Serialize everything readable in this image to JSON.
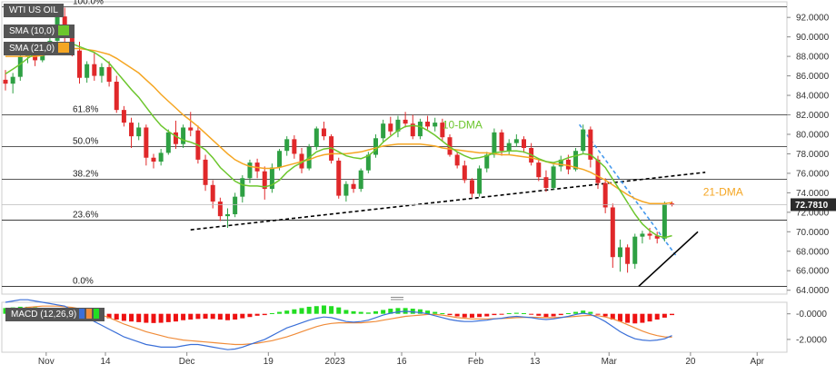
{
  "legend": {
    "title": "WTI US OIL",
    "sma10": "SMA (10,0)",
    "sma21": "SMA (21,0)",
    "macd": "MACD (12,26,9)"
  },
  "colors": {
    "up": "#2ea043",
    "down": "#e0282a",
    "sma10": "#6cc62d",
    "sma21": "#f5a623",
    "macd_line": "#3a6fd8",
    "signal_line": "#f08c3a",
    "hist_pos": "#22dd22",
    "hist_neg": "#ee1111",
    "price_tag": "#2b2b2b"
  },
  "chart_data": [
    {
      "type": "candlestick",
      "ylim": [
        63.6,
        93.6
      ],
      "y_ticks": [
        "92.0000",
        "90.0000",
        "88.0000",
        "86.0000",
        "84.0000",
        "82.0000",
        "80.0000",
        "78.0000",
        "76.0000",
        "74.0000",
        "72.0000",
        "70.0000",
        "68.0000",
        "66.0000",
        "64.0000"
      ],
      "x_ticks": [
        "Nov",
        "14",
        "Dec",
        "19",
        "2023",
        "16",
        "Feb",
        "13",
        "Mar",
        "20",
        "Apr"
      ],
      "current_price_label": "72.7810",
      "fib_levels": [
        {
          "label": "100.0%",
          "value": 93.1
        },
        {
          "label": "61.8%",
          "value": 82.0
        },
        {
          "label": "50.0%",
          "value": 78.75
        },
        {
          "label": "38.2%",
          "value": 75.4
        },
        {
          "label": "23.6%",
          "value": 71.2
        },
        {
          "label": "0.0%",
          "value": 64.4
        }
      ],
      "annotations": [
        {
          "text": "10-DMA",
          "color": "#6cc62d"
        },
        {
          "text": "21-DMA",
          "color": "#f5a623"
        }
      ],
      "candles": [
        [
          85.6,
          86.6,
          84.5,
          85.2
        ],
        [
          85.2,
          86.3,
          84.2,
          85.9
        ],
        [
          85.9,
          88.5,
          85.5,
          88.0
        ],
        [
          88.0,
          89.0,
          87.3,
          88.4
        ],
        [
          88.4,
          88.9,
          87.0,
          87.6
        ],
        [
          87.6,
          89.5,
          87.4,
          89.2
        ],
        [
          89.2,
          90.2,
          88.8,
          89.6
        ],
        [
          89.6,
          92.5,
          89.4,
          92.1
        ],
        [
          92.1,
          93.0,
          89.5,
          89.9
        ],
        [
          89.9,
          91.0,
          88.0,
          88.6
        ],
        [
          88.6,
          89.5,
          85.2,
          85.8
        ],
        [
          85.8,
          87.5,
          85.3,
          87.2
        ],
        [
          87.2,
          88.4,
          85.5,
          86.0
        ],
        [
          86.0,
          87.3,
          85.3,
          86.9
        ],
        [
          86.9,
          87.5,
          84.9,
          85.4
        ],
        [
          85.4,
          86.0,
          82.2,
          82.5
        ],
        [
          82.5,
          82.9,
          80.8,
          81.2
        ],
        [
          81.2,
          81.7,
          78.6,
          79.8
        ],
        [
          79.8,
          81.2,
          79.4,
          80.7
        ],
        [
          80.7,
          81.0,
          76.8,
          77.6
        ],
        [
          77.6,
          78.0,
          76.5,
          77.2
        ],
        [
          77.2,
          78.5,
          76.8,
          78.1
        ],
        [
          78.1,
          80.5,
          77.9,
          80.2
        ],
        [
          80.2,
          81.4,
          78.5,
          79.0
        ],
        [
          79.0,
          81.0,
          78.6,
          80.7
        ],
        [
          80.7,
          82.3,
          79.8,
          80.4
        ],
        [
          80.4,
          80.9,
          77.0,
          77.4
        ],
        [
          77.4,
          77.9,
          74.2,
          74.8
        ],
        [
          74.8,
          75.3,
          72.4,
          73.1
        ],
        [
          73.1,
          73.5,
          71.1,
          71.6
        ],
        [
          71.6,
          72.4,
          70.4,
          71.8
        ],
        [
          71.8,
          74.0,
          71.5,
          73.6
        ],
        [
          73.6,
          75.8,
          73.0,
          75.5
        ],
        [
          75.5,
          77.4,
          75.0,
          77.1
        ],
        [
          77.1,
          77.5,
          75.5,
          76.2
        ],
        [
          76.2,
          76.7,
          73.3,
          74.4
        ],
        [
          74.4,
          77.0,
          74.0,
          76.6
        ],
        [
          76.6,
          78.5,
          76.3,
          78.3
        ],
        [
          78.3,
          79.8,
          77.8,
          79.5
        ],
        [
          79.5,
          79.9,
          77.5,
          78.0
        ],
        [
          78.0,
          78.6,
          76.0,
          76.5
        ],
        [
          76.5,
          79.0,
          76.3,
          78.7
        ],
        [
          78.7,
          80.8,
          78.4,
          80.6
        ],
        [
          80.6,
          81.3,
          79.4,
          79.8
        ],
        [
          79.8,
          80.0,
          77.0,
          77.3
        ],
        [
          77.3,
          77.6,
          73.4,
          73.7
        ],
        [
          73.7,
          75.2,
          73.1,
          74.9
        ],
        [
          74.9,
          75.4,
          74.0,
          74.4
        ],
        [
          74.4,
          76.5,
          74.1,
          76.3
        ],
        [
          76.3,
          78.2,
          76.0,
          77.9
        ],
        [
          77.9,
          80.0,
          77.6,
          79.6
        ],
        [
          79.6,
          81.5,
          79.2,
          81.1
        ],
        [
          81.1,
          81.8,
          79.9,
          80.3
        ],
        [
          80.3,
          81.9,
          79.7,
          81.5
        ],
        [
          81.5,
          82.3,
          80.7,
          81.1
        ],
        [
          81.1,
          82.0,
          79.5,
          79.8
        ],
        [
          79.8,
          81.6,
          79.5,
          81.3
        ],
        [
          81.3,
          81.9,
          80.5,
          80.8
        ],
        [
          80.8,
          81.7,
          80.3,
          81.2
        ],
        [
          81.2,
          81.6,
          79.3,
          79.7
        ],
        [
          79.7,
          80.0,
          77.7,
          77.9
        ],
        [
          77.9,
          78.2,
          76.5,
          76.8
        ],
        [
          76.8,
          77.3,
          75.0,
          75.3
        ],
        [
          75.3,
          75.5,
          73.5,
          73.9
        ],
        [
          73.9,
          76.8,
          73.6,
          76.5
        ],
        [
          76.5,
          78.2,
          76.1,
          77.9
        ],
        [
          77.9,
          80.6,
          77.6,
          80.2
        ],
        [
          80.2,
          80.5,
          77.8,
          78.3
        ],
        [
          78.3,
          79.5,
          77.9,
          79.1
        ],
        [
          79.1,
          80.0,
          78.7,
          79.5
        ],
        [
          79.5,
          79.8,
          78.1,
          78.6
        ],
        [
          78.6,
          79.1,
          76.8,
          77.1
        ],
        [
          77.1,
          77.4,
          75.2,
          75.6
        ],
        [
          75.6,
          76.3,
          74.1,
          74.5
        ],
        [
          74.5,
          76.9,
          74.3,
          76.7
        ],
        [
          76.7,
          77.8,
          76.2,
          77.4
        ],
        [
          77.4,
          77.9,
          75.9,
          76.4
        ],
        [
          76.4,
          78.6,
          76.2,
          78.3
        ],
        [
          78.3,
          81.0,
          78.0,
          80.5
        ],
        [
          80.5,
          80.8,
          76.6,
          77.4
        ],
        [
          77.4,
          77.8,
          74.4,
          75.0
        ],
        [
          75.0,
          75.5,
          71.9,
          72.5
        ],
        [
          72.5,
          72.9,
          66.3,
          67.4
        ],
        [
          67.4,
          69.2,
          65.9,
          68.4
        ],
        [
          68.4,
          68.7,
          65.8,
          66.7
        ],
        [
          66.7,
          69.8,
          66.2,
          69.5
        ],
        [
          69.5,
          70.1,
          68.8,
          69.8
        ],
        [
          69.8,
          70.4,
          69.2,
          69.6
        ],
        [
          69.6,
          70.0,
          68.8,
          69.3
        ],
        [
          69.3,
          73.1,
          69.0,
          72.9
        ],
        [
          72.9,
          73.1,
          72.6,
          72.78
        ]
      ],
      "sma10": [
        86.2,
        86.7,
        87.2,
        87.8,
        88.3,
        88.6,
        88.8,
        89.2,
        89.4,
        89.3,
        89.0,
        88.7,
        88.4,
        87.9,
        87.3,
        86.4,
        85.5,
        84.6,
        83.8,
        82.8,
        81.8,
        80.9,
        80.3,
        79.8,
        79.4,
        79.2,
        78.9,
        78.4,
        77.6,
        76.6,
        75.9,
        75.2,
        74.8,
        74.7,
        74.7,
        74.6,
        74.8,
        75.3,
        76.1,
        76.7,
        77.1,
        77.6,
        78.2,
        78.5,
        78.6,
        78.2,
        77.8,
        77.6,
        77.5,
        77.8,
        78.4,
        79.2,
        79.8,
        80.4,
        80.8,
        80.9,
        80.8,
        80.4,
        79.9,
        79.3,
        78.7,
        78.2,
        77.8,
        77.5,
        77.6,
        77.8,
        78.1,
        78.2,
        78.3,
        78.3,
        78.2,
        77.9,
        77.5,
        77.2,
        77.1,
        77.3,
        77.6,
        77.8,
        78.0,
        77.9,
        77.3,
        76.6,
        75.4,
        74.2,
        73.0,
        71.8,
        70.8,
        70.1,
        69.6,
        69.4,
        69.6
      ],
      "sma21": [
        88.0,
        88.0,
        88.0,
        88.0,
        88.0,
        88.1,
        88.3,
        88.5,
        88.7,
        88.8,
        88.8,
        88.7,
        88.6,
        88.4,
        88.2,
        87.8,
        87.3,
        86.8,
        86.3,
        85.6,
        84.9,
        84.1,
        83.4,
        82.7,
        82.0,
        81.4,
        80.8,
        80.1,
        79.4,
        78.7,
        78.0,
        77.4,
        77.0,
        76.7,
        76.6,
        76.5,
        76.5,
        76.6,
        76.8,
        77.0,
        77.2,
        77.4,
        77.7,
        77.9,
        78.0,
        78.0,
        78.0,
        78.1,
        78.2,
        78.4,
        78.6,
        78.8,
        78.9,
        79.0,
        79.0,
        79.0,
        79.0,
        78.9,
        78.8,
        78.6,
        78.5,
        78.4,
        78.3,
        78.2,
        78.1,
        78.1,
        78.0,
        77.9,
        77.9,
        77.8,
        77.7,
        77.6,
        77.4,
        77.2,
        77.0,
        76.9,
        76.8,
        76.6,
        76.4,
        76.1,
        75.7,
        75.3,
        74.8,
        74.3,
        73.8,
        73.4,
        73.1,
        72.9,
        72.9,
        72.9,
        73.0
      ],
      "trendlines": [
        {
          "style": "dashed",
          "color": "#000000",
          "from": [
            25.0,
            70.2
          ],
          "to": [
            94.5,
            76.1
          ]
        },
        {
          "style": "dashed",
          "color": "#4499ee",
          "from": [
            77.5,
            81.0
          ],
          "to": [
            90.5,
            67.6
          ]
        },
        {
          "style": "solid",
          "color": "#000000",
          "from": [
            85.5,
            64.4
          ],
          "to": [
            93.5,
            70.0
          ]
        }
      ]
    },
    {
      "type": "macd",
      "ylim": [
        -3.0,
        0.9
      ],
      "y_ticks": [
        "-0.0000",
        "-2.0000"
      ],
      "histogram": [
        0.45,
        0.5,
        0.55,
        0.55,
        0.5,
        0.45,
        0.4,
        0.35,
        0.3,
        0.2,
        0.1,
        -0.05,
        -0.15,
        -0.25,
        -0.35,
        -0.45,
        -0.55,
        -0.6,
        -0.65,
        -0.7,
        -0.72,
        -0.7,
        -0.65,
        -0.6,
        -0.5,
        -0.45,
        -0.4,
        -0.38,
        -0.4,
        -0.45,
        -0.5,
        -0.45,
        -0.35,
        -0.25,
        -0.15,
        -0.1,
        0.05,
        0.15,
        0.25,
        0.35,
        0.45,
        0.55,
        0.6,
        0.65,
        0.6,
        0.5,
        0.3,
        0.2,
        0.15,
        0.1,
        0.2,
        0.3,
        0.4,
        0.45,
        0.45,
        0.4,
        0.35,
        0.25,
        0.15,
        0.05,
        -0.1,
        -0.2,
        -0.28,
        -0.3,
        -0.25,
        -0.2,
        -0.1,
        -0.05,
        0.05,
        0.08,
        0.05,
        -0.05,
        -0.15,
        -0.25,
        -0.2,
        -0.1,
        0.05,
        0.15,
        0.25,
        0.15,
        -0.05,
        -0.2,
        -0.45,
        -0.6,
        -0.7,
        -0.75,
        -0.7,
        -0.6,
        -0.45,
        -0.3,
        -0.1
      ],
      "macd": [
        0.9,
        1.0,
        1.1,
        1.1,
        1.0,
        0.9,
        0.8,
        0.7,
        0.6,
        0.3,
        0.0,
        -0.3,
        -0.6,
        -0.9,
        -1.2,
        -1.5,
        -1.8,
        -2.0,
        -2.2,
        -2.4,
        -2.5,
        -2.6,
        -2.6,
        -2.6,
        -2.5,
        -2.4,
        -2.4,
        -2.5,
        -2.6,
        -2.7,
        -2.8,
        -2.75,
        -2.6,
        -2.4,
        -2.2,
        -2.0,
        -1.7,
        -1.4,
        -1.1,
        -0.9,
        -0.7,
        -0.5,
        -0.35,
        -0.25,
        -0.3,
        -0.45,
        -0.6,
        -0.65,
        -0.6,
        -0.5,
        -0.3,
        -0.1,
        0.05,
        0.15,
        0.2,
        0.15,
        0.1,
        0.0,
        -0.15,
        -0.3,
        -0.45,
        -0.55,
        -0.6,
        -0.6,
        -0.55,
        -0.5,
        -0.4,
        -0.35,
        -0.25,
        -0.2,
        -0.25,
        -0.3,
        -0.4,
        -0.45,
        -0.4,
        -0.3,
        -0.2,
        -0.05,
        0.05,
        -0.05,
        -0.3,
        -0.6,
        -1.0,
        -1.4,
        -1.7,
        -1.95,
        -2.05,
        -2.1,
        -2.05,
        -1.95,
        -1.7
      ],
      "signal": [
        0.2,
        0.3,
        0.4,
        0.5,
        0.55,
        0.6,
        0.6,
        0.6,
        0.55,
        0.5,
        0.4,
        0.25,
        0.1,
        -0.1,
        -0.3,
        -0.55,
        -0.8,
        -1.0,
        -1.2,
        -1.4,
        -1.55,
        -1.7,
        -1.85,
        -1.95,
        -2.05,
        -2.1,
        -2.15,
        -2.2,
        -2.25,
        -2.3,
        -2.35,
        -2.4,
        -2.4,
        -2.35,
        -2.3,
        -2.2,
        -2.1,
        -1.95,
        -1.8,
        -1.6,
        -1.4,
        -1.2,
        -1.0,
        -0.85,
        -0.75,
        -0.7,
        -0.7,
        -0.7,
        -0.7,
        -0.65,
        -0.6,
        -0.5,
        -0.4,
        -0.3,
        -0.2,
        -0.15,
        -0.1,
        -0.05,
        -0.05,
        -0.1,
        -0.2,
        -0.3,
        -0.35,
        -0.4,
        -0.4,
        -0.4,
        -0.38,
        -0.36,
        -0.34,
        -0.3,
        -0.28,
        -0.27,
        -0.28,
        -0.3,
        -0.3,
        -0.28,
        -0.25,
        -0.2,
        -0.15,
        -0.12,
        -0.15,
        -0.25,
        -0.4,
        -0.6,
        -0.85,
        -1.1,
        -1.35,
        -1.55,
        -1.7,
        -1.8,
        -1.82
      ]
    }
  ]
}
